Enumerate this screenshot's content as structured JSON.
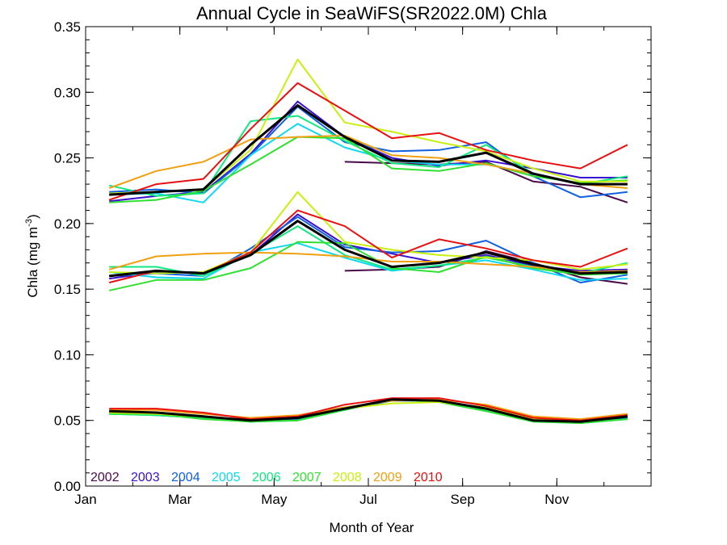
{
  "chart_data": {
    "type": "line",
    "title": "Annual Cycle in SeaWiFS(SR2022.0M) Chla",
    "xlabel": "Month of Year",
    "ylabel": {
      "base": "Chla (mg m",
      "sup": "-3",
      "tail": ")"
    },
    "xlim": [
      0,
      12
    ],
    "ylim": [
      0,
      0.35
    ],
    "x_ticks": [
      {
        "value": 0,
        "label": "Jan"
      },
      {
        "value": 2,
        "label": "Mar"
      },
      {
        "value": 4,
        "label": "May"
      },
      {
        "value": 6,
        "label": "Jul"
      },
      {
        "value": 8,
        "label": "Sep"
      },
      {
        "value": 10,
        "label": "Nov"
      }
    ],
    "y_ticks": [
      {
        "value": 0.0,
        "label": "0.00"
      },
      {
        "value": 0.05,
        "label": "0.05"
      },
      {
        "value": 0.1,
        "label": "0.10"
      },
      {
        "value": 0.15,
        "label": "0.15"
      },
      {
        "value": 0.2,
        "label": "0.20"
      },
      {
        "value": 0.25,
        "label": "0.25"
      },
      {
        "value": 0.3,
        "label": "0.30"
      },
      {
        "value": 0.35,
        "label": "0.35"
      }
    ],
    "x": [
      0.5,
      1.5,
      2.5,
      3.5,
      4.5,
      5.5,
      6.5,
      7.5,
      8.5,
      9.5,
      10.5,
      11.5
    ],
    "legend_position": "bottom-left",
    "grid": false,
    "groups": [
      "upper",
      "middle",
      "lower"
    ],
    "series": [
      {
        "name": "2002",
        "color": "#4a0a4a",
        "upper": [
          null,
          null,
          null,
          null,
          null,
          0.247,
          0.246,
          0.245,
          0.247,
          0.232,
          0.228,
          0.216
        ],
        "middle": [
          null,
          null,
          null,
          null,
          null,
          0.164,
          0.165,
          0.167,
          0.179,
          0.17,
          0.159,
          0.154
        ],
        "lower": [
          null,
          null,
          null,
          null,
          null,
          null,
          null,
          null,
          null,
          null,
          null,
          null
        ]
      },
      {
        "name": "2003",
        "color": "#3a10d0",
        "upper": [
          0.217,
          0.221,
          0.224,
          0.253,
          0.293,
          0.266,
          0.25,
          0.244,
          0.248,
          0.242,
          0.235,
          0.235
        ],
        "middle": [
          0.158,
          0.163,
          0.163,
          0.176,
          0.207,
          0.184,
          0.177,
          0.17,
          0.176,
          0.168,
          0.164,
          0.165
        ],
        "lower": [
          0.057,
          0.056,
          0.053,
          0.05,
          0.052,
          0.058,
          0.066,
          0.065,
          0.058,
          0.05,
          0.049,
          0.053
        ]
      },
      {
        "name": "2004",
        "color": "#1060e0",
        "upper": [
          0.224,
          0.226,
          0.223,
          0.252,
          0.289,
          0.262,
          0.255,
          0.256,
          0.262,
          0.236,
          0.22,
          0.224
        ],
        "middle": [
          0.16,
          0.162,
          0.16,
          0.181,
          0.205,
          0.182,
          0.178,
          0.179,
          0.187,
          0.17,
          0.155,
          0.161
        ],
        "lower": [
          0.056,
          0.054,
          0.052,
          0.049,
          0.051,
          0.058,
          0.065,
          0.065,
          0.058,
          0.05,
          0.048,
          0.052
        ]
      },
      {
        "name": "2005",
        "color": "#10d8f0",
        "upper": [
          0.222,
          0.223,
          0.216,
          0.252,
          0.276,
          0.258,
          0.248,
          0.245,
          0.245,
          0.238,
          0.23,
          0.23
        ],
        "middle": [
          0.163,
          0.159,
          0.158,
          0.178,
          0.185,
          0.174,
          0.164,
          0.168,
          0.172,
          0.165,
          0.157,
          0.158
        ],
        "lower": [
          0.055,
          0.054,
          0.052,
          0.049,
          0.05,
          0.058,
          0.066,
          0.064,
          0.058,
          0.049,
          0.048,
          0.051
        ]
      },
      {
        "name": "2006",
        "color": "#10e880",
        "upper": [
          0.229,
          0.221,
          0.223,
          0.278,
          0.282,
          0.263,
          0.246,
          0.243,
          0.26,
          0.238,
          0.23,
          0.236
        ],
        "middle": [
          0.167,
          0.167,
          0.16,
          0.177,
          0.198,
          0.176,
          0.165,
          0.168,
          0.174,
          0.167,
          0.162,
          0.17
        ],
        "lower": [
          0.055,
          0.054,
          0.052,
          0.049,
          0.05,
          0.058,
          0.066,
          0.065,
          0.058,
          0.05,
          0.048,
          0.051
        ]
      },
      {
        "name": "2007",
        "color": "#30e030",
        "upper": [
          0.216,
          0.218,
          0.225,
          0.245,
          0.266,
          0.265,
          0.242,
          0.24,
          0.246,
          0.236,
          0.231,
          0.233
        ],
        "middle": [
          0.149,
          0.157,
          0.157,
          0.166,
          0.186,
          0.185,
          0.166,
          0.163,
          0.175,
          0.166,
          0.161,
          0.162
        ],
        "lower": [
          0.055,
          0.055,
          0.051,
          0.049,
          0.05,
          0.058,
          0.066,
          0.064,
          0.057,
          0.049,
          0.048,
          0.051
        ]
      },
      {
        "name": "2008",
        "color": "#c8f010",
        "upper": [
          0.223,
          0.224,
          0.226,
          0.256,
          0.325,
          0.277,
          0.27,
          0.262,
          0.255,
          0.242,
          0.232,
          0.232
        ],
        "middle": [
          0.163,
          0.162,
          0.163,
          0.178,
          0.224,
          0.186,
          0.18,
          0.176,
          0.174,
          0.172,
          0.165,
          0.169
        ],
        "lower": [
          0.056,
          0.055,
          0.053,
          0.05,
          0.053,
          0.059,
          0.063,
          0.064,
          0.06,
          0.051,
          0.05,
          0.054
        ]
      },
      {
        "name": "2009",
        "color": "#f0a010",
        "upper": [
          0.227,
          0.24,
          0.247,
          0.264,
          0.266,
          0.267,
          0.252,
          0.25,
          0.245,
          0.238,
          0.23,
          0.227
        ],
        "middle": [
          0.165,
          0.175,
          0.177,
          0.178,
          0.177,
          0.175,
          0.171,
          0.171,
          0.169,
          0.167,
          0.163,
          0.164
        ],
        "lower": [
          0.058,
          0.058,
          0.055,
          0.052,
          0.054,
          0.06,
          0.065,
          0.066,
          0.062,
          0.053,
          0.051,
          0.055
        ]
      },
      {
        "name": "2010",
        "color": "#e81010",
        "upper": [
          0.218,
          0.23,
          0.234,
          0.272,
          0.307,
          0.286,
          0.265,
          0.269,
          0.256,
          0.248,
          0.242,
          0.26
        ],
        "middle": [
          0.155,
          0.164,
          0.162,
          0.178,
          0.21,
          0.198,
          0.174,
          0.188,
          0.181,
          0.172,
          0.167,
          0.181
        ],
        "lower": [
          0.059,
          0.059,
          0.056,
          0.051,
          0.053,
          0.062,
          0.067,
          0.067,
          0.061,
          0.052,
          0.05,
          0.054
        ]
      },
      {
        "name": "",
        "color": "#000000",
        "upper": [
          0.222,
          0.224,
          0.226,
          0.26,
          0.29,
          0.266,
          0.248,
          0.247,
          0.254,
          0.238,
          0.23,
          0.23
        ],
        "middle": [
          0.16,
          0.164,
          0.162,
          0.176,
          0.202,
          0.18,
          0.167,
          0.17,
          0.178,
          0.169,
          0.162,
          0.163
        ],
        "lower": [
          0.057,
          0.056,
          0.053,
          0.05,
          0.052,
          0.059,
          0.066,
          0.065,
          0.059,
          0.05,
          0.049,
          0.053
        ]
      }
    ]
  }
}
